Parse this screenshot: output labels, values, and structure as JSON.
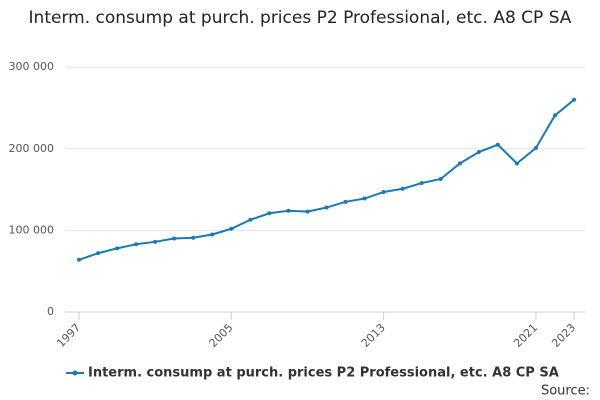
{
  "chart_data": {
    "type": "line",
    "title": "Interm. consump at purch. prices P2 Professional, etc. A8 CP SA",
    "x": [
      1997,
      1998,
      1999,
      2000,
      2001,
      2002,
      2003,
      2004,
      2005,
      2006,
      2007,
      2008,
      2009,
      2010,
      2011,
      2012,
      2013,
      2014,
      2015,
      2016,
      2017,
      2018,
      2019,
      2020,
      2021,
      2022,
      2023
    ],
    "series": [
      {
        "name": "Interm. consump at purch. prices P2 Professional, etc. A8 CP SA",
        "color": "#1a7ab5",
        "values": [
          64000,
          72000,
          78000,
          83000,
          86000,
          90000,
          91000,
          95000,
          102000,
          113000,
          121000,
          124000,
          123000,
          128000,
          135000,
          139000,
          147000,
          151000,
          158000,
          163000,
          182000,
          196000,
          205000,
          182000,
          201000,
          241000,
          260000
        ]
      }
    ],
    "xlim": [
      1997,
      2023
    ],
    "xticks": [
      1997,
      2005,
      2013,
      2021,
      2023
    ],
    "ylim": [
      0,
      310000
    ],
    "yticks": [
      0,
      {
        "value": 100000,
        "label": "100 000"
      },
      {
        "value": 200000,
        "label": "200 000"
      },
      {
        "value": 300000,
        "label": "300 000"
      }
    ],
    "grid": true,
    "source": "Source:"
  }
}
